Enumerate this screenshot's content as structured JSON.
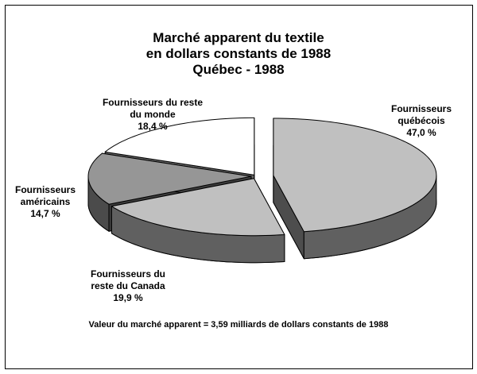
{
  "chart_data": {
    "type": "pie3d",
    "title": [
      "Marché apparent du textile",
      "en dollars constants de 1988",
      "Québec - 1988"
    ],
    "categories": [
      "Fournisseurs québécois",
      "Fournisseurs du reste du Canada",
      "Fournisseurs américains",
      "Fournisseurs du reste du monde"
    ],
    "values": [
      47.0,
      19.9,
      14.7,
      18.4
    ],
    "value_labels": [
      "47,0 %",
      "19,9 %",
      "14,7 %",
      "18,4 %"
    ],
    "colors": [
      "#c0c0c0",
      "#c0c0c0",
      "#969696",
      "#ffffff"
    ],
    "annotation": "Valeur du marché apparent = 3,59 milliards de dollars constants de 1988"
  }
}
